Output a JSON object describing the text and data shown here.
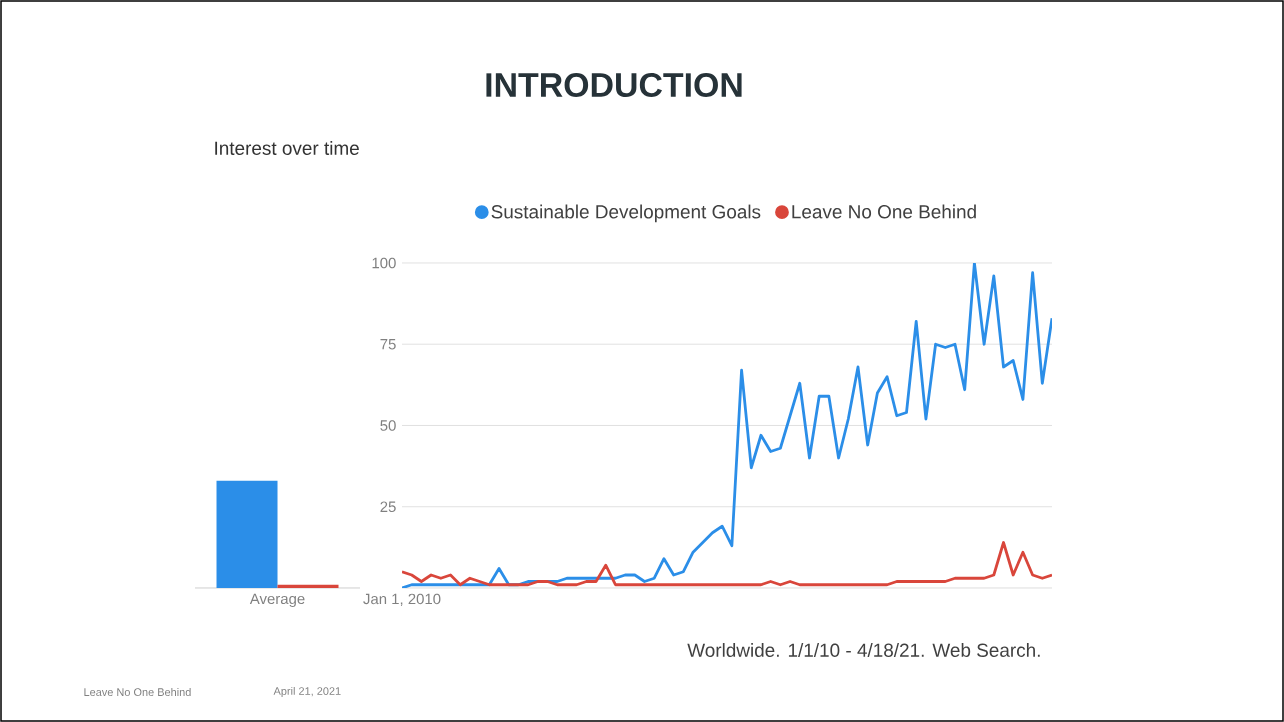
{
  "chart_data": [
    {
      "type": "bar",
      "title": "Interest over time",
      "categories": [
        "Average"
      ],
      "ylim": [
        0,
        100
      ],
      "tick_labels": "x",
      "series": [
        {
          "color": "#2b8ee8",
          "values": [
            33
          ]
        },
        {
          "color": "#d9463b",
          "values": [
            1
          ]
        }
      ]
    },
    {
      "type": "line",
      "title": "INTRODUCTION",
      "categories": [
        "Jan 1, 2010",
        null,
        null,
        null,
        null,
        null,
        null,
        null,
        null,
        null,
        null,
        null,
        null,
        null,
        null,
        null,
        null,
        null,
        null,
        null,
        null,
        null,
        null,
        null,
        null,
        null,
        null,
        null,
        null,
        null,
        null,
        null,
        null,
        null,
        null,
        null,
        null,
        null,
        null,
        null,
        null,
        null,
        null,
        null,
        null,
        null,
        null,
        null,
        null,
        null,
        null,
        null,
        null,
        null,
        null,
        null,
        null,
        null,
        null,
        null,
        null,
        null,
        null,
        null,
        null,
        null,
        null,
        null
      ],
      "ylim": [
        0,
        100
      ],
      "yticks": [
        25,
        50,
        75,
        100
      ],
      "grid": "y",
      "legend": "top",
      "marker": "none",
      "line_style": "solid",
      "annotations": [
        "Worldwide. 1/1/10 - 4/18/21. Web Search.",
        "Leave No One Behind",
        "April 21, 2021"
      ],
      "series": [
        {
          "name": "Sustainable Development Goals",
          "color": "#2b8ee8",
          "values": [
            0,
            1,
            1,
            1,
            1,
            1,
            1,
            1,
            1,
            1,
            6,
            1,
            1,
            2,
            2,
            2,
            2,
            3,
            3,
            3,
            3,
            3,
            3,
            4,
            4,
            2,
            3,
            9,
            4,
            5,
            11,
            14,
            17,
            19,
            13,
            67,
            37,
            47,
            42,
            43,
            53,
            63,
            40,
            59,
            59,
            40,
            52,
            68,
            44,
            60,
            65,
            53,
            54,
            82,
            52,
            75,
            74,
            75,
            61,
            100,
            75,
            96,
            68,
            70,
            58,
            97,
            63,
            83
          ]
        },
        {
          "name": "Leave No One Behind",
          "color": "#d9463b",
          "values": [
            5,
            4,
            2,
            4,
            3,
            4,
            1,
            3,
            2,
            1,
            1,
            1,
            1,
            1,
            2,
            2,
            1,
            1,
            1,
            2,
            2,
            7,
            1,
            1,
            1,
            1,
            1,
            1,
            1,
            1,
            1,
            1,
            1,
            1,
            1,
            1,
            1,
            1,
            2,
            1,
            2,
            1,
            1,
            1,
            1,
            1,
            1,
            1,
            1,
            1,
            1,
            2,
            2,
            2,
            2,
            2,
            2,
            3,
            3,
            3,
            3,
            4,
            14,
            4,
            11,
            4,
            3,
            4
          ]
        }
      ]
    }
  ]
}
